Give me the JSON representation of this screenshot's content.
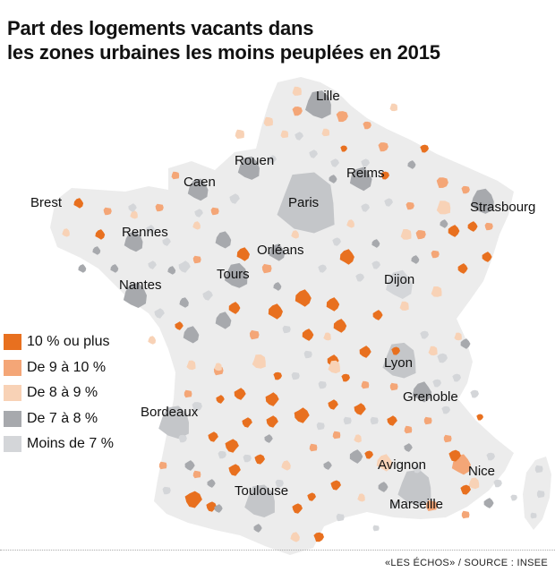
{
  "title_lines": [
    "Part des logements vacants dans",
    "les zones urbaines les moins peuplées en 2015"
  ],
  "colors": {
    "land": "#ececec",
    "c10plus": "#e8701f",
    "c9to10": "#f4a677",
    "c8to9": "#f8d2b6",
    "c7to8": "#a7a9ad",
    "clt7": "#d4d6d9",
    "large_metro": "#c4c6c9"
  },
  "legend": [
    {
      "label": "10 % ou plus",
      "color": "#e8701f"
    },
    {
      "label": "De 9 à 10 %",
      "color": "#f4a677"
    },
    {
      "label": "De 8 à 9 %",
      "color": "#f8d2b6"
    },
    {
      "label": "De 7 à 8 %",
      "color": "#a7a9ad"
    },
    {
      "label": "Moins de 7 %",
      "color": "#d4d6d9"
    }
  ],
  "cities": {
    "lille": "Lille",
    "rouen": "Rouen",
    "reims": "Reims",
    "caen": "Caen",
    "paris": "Paris",
    "brest": "Brest",
    "strasbourg": "Strasbourg",
    "rennes": "Rennes",
    "orleans": "Orléans",
    "tours": "Tours",
    "nantes": "Nantes",
    "dijon": "Dijon",
    "lyon": "Lyon",
    "grenoble": "Grenoble",
    "bordeaux": "Bordeaux",
    "avignon": "Avignon",
    "nice": "Nice",
    "toulouse": "Toulouse",
    "marseille": "Marseille"
  },
  "source": "«LES ÉCHOS» / SOURCE : INSEE"
}
